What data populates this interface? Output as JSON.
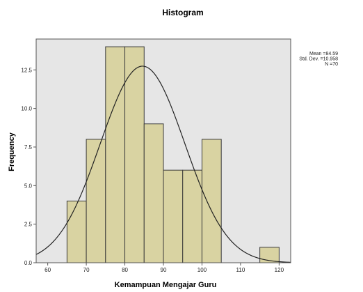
{
  "chart_data": {
    "type": "histogram",
    "title": "Histogram",
    "xlabel": "Kemampuan Mengajar Guru",
    "ylabel": "Frequency",
    "xlim": [
      57,
      123
    ],
    "ylim": [
      0,
      14.5
    ],
    "xticks": [
      60,
      70,
      80,
      90,
      100,
      110,
      120
    ],
    "xtick_labels": [
      "60",
      "70",
      "80",
      "90",
      "100",
      "110",
      "120"
    ],
    "yticks": [
      0,
      2.5,
      5,
      7.5,
      10,
      12.5
    ],
    "ytick_labels": [
      "0.0",
      "2.5",
      "5.0",
      "7.5",
      "10.0",
      "12.5"
    ],
    "bins": [
      {
        "start": 65,
        "end": 70,
        "count": 4
      },
      {
        "start": 70,
        "end": 75,
        "count": 8
      },
      {
        "start": 75,
        "end": 80,
        "count": 14
      },
      {
        "start": 80,
        "end": 85,
        "count": 14
      },
      {
        "start": 85,
        "end": 90,
        "count": 9
      },
      {
        "start": 90,
        "end": 95,
        "count": 6
      },
      {
        "start": 95,
        "end": 100,
        "count": 6
      },
      {
        "start": 100,
        "end": 105,
        "count": 8
      },
      {
        "start": 115,
        "end": 120,
        "count": 1
      }
    ],
    "normal_curve": {
      "mean": 84.59,
      "std": 10.958,
      "n": 70,
      "bin_width": 5
    },
    "stats_lines": [
      "Mean =84.59",
      "Std. Dev. =10.958",
      "N =70"
    ],
    "colors": {
      "bar_fill": "#d9d3a2",
      "bar_stroke": "#3a3a3a",
      "plot_bg": "#e6e6e6",
      "curve": "#222222"
    },
    "grid": false,
    "legend": "none"
  }
}
